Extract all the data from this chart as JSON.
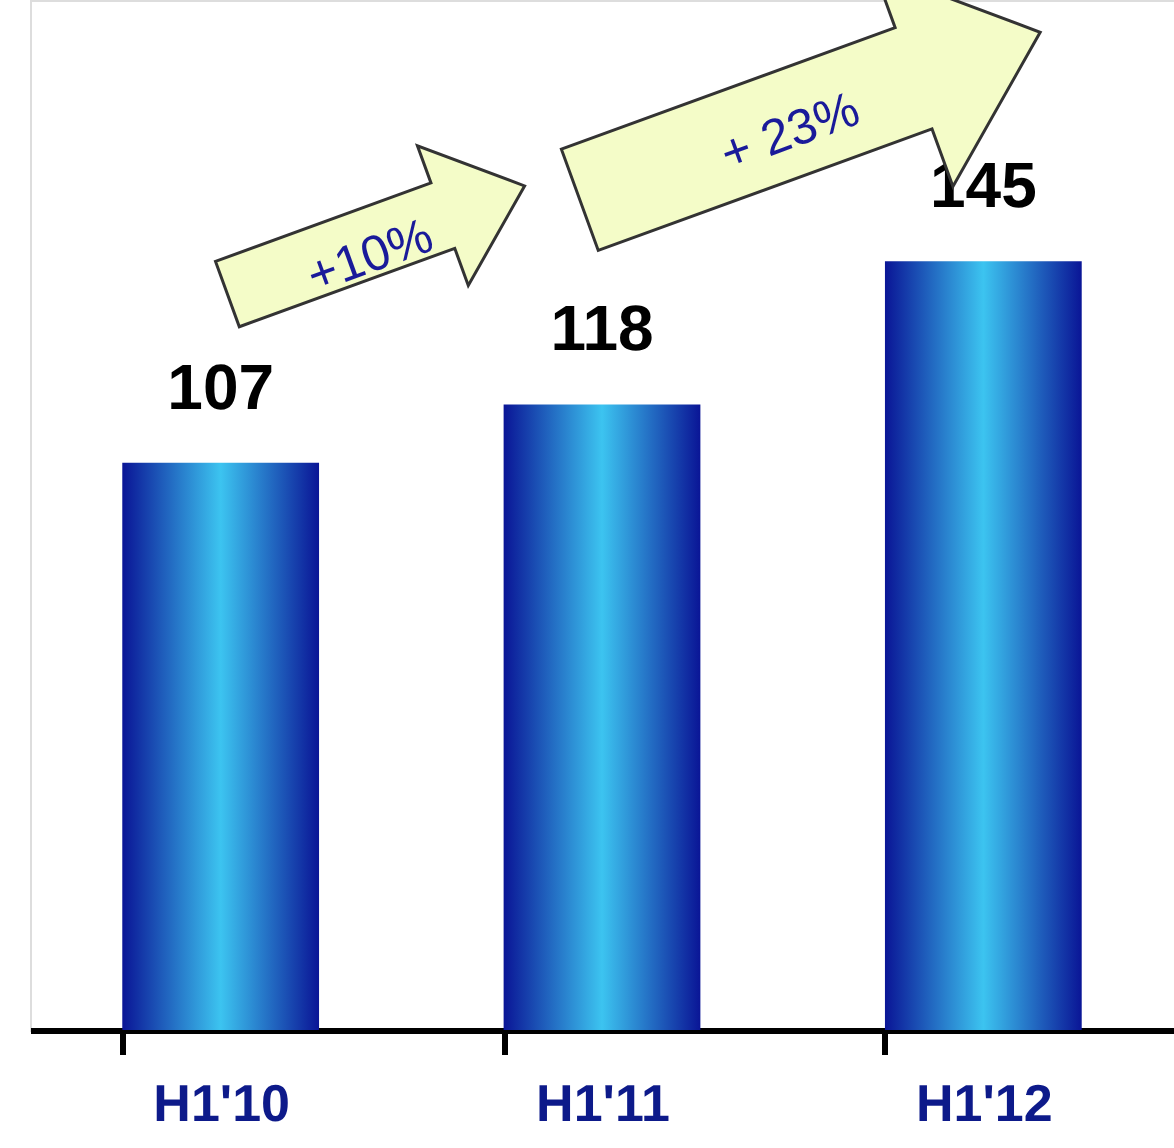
{
  "chart_data": {
    "type": "bar",
    "categories": [
      "H1'10",
      "H1'11",
      "H1'12"
    ],
    "values": [
      107,
      118,
      145
    ],
    "color": "#3cc4f0",
    "data_labels": true,
    "grid": false,
    "annotations": [
      "+10%",
      "+ 23%"
    ]
  }
}
